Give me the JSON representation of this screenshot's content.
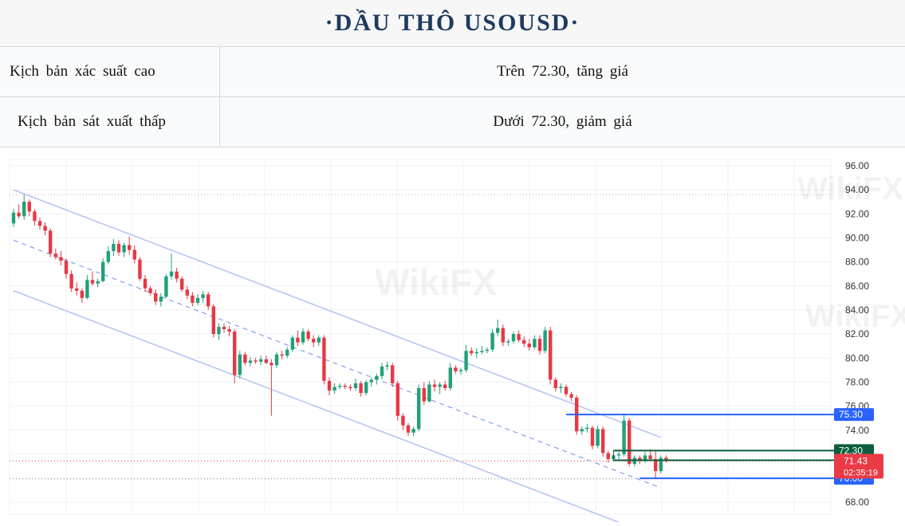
{
  "header": {
    "title": "·DẦU THÔ USOUSD·"
  },
  "scenario_table": {
    "rows": [
      {
        "label": "Kịch bản xác suất cao",
        "value": "Trên 72.30, tăng giá"
      },
      {
        "label": "Kịch bản sát xuất thấp",
        "value": "Dưới 72.30, giảm giá"
      }
    ]
  },
  "watermark": "WikiFX",
  "chart_data": {
    "type": "candlestick",
    "ylim": [
      68,
      96
    ],
    "y_ticks": [
      "96.00",
      "94.00",
      "92.00",
      "90.00",
      "88.00",
      "86.00",
      "84.00",
      "82.00",
      "80.00",
      "78.00",
      "76.00",
      "74.00",
      "72.00",
      "70.00",
      "68.00"
    ],
    "candles": [
      [
        91.2,
        92.4,
        90.9,
        92.1
      ],
      [
        92.1,
        92.8,
        91.6,
        91.8
      ],
      [
        91.8,
        93.6,
        91.5,
        93.0
      ],
      [
        93.0,
        93.2,
        91.8,
        92.2
      ],
      [
        92.2,
        92.4,
        91.0,
        91.4
      ],
      [
        91.4,
        91.7,
        90.7,
        91.0
      ],
      [
        91.0,
        91.3,
        90.2,
        90.6
      ],
      [
        90.6,
        90.8,
        88.4,
        88.7
      ],
      [
        88.7,
        89.1,
        88.2,
        88.4
      ],
      [
        88.4,
        88.9,
        87.7,
        88.1
      ],
      [
        88.1,
        88.3,
        86.6,
        87.0
      ],
      [
        87.0,
        87.3,
        85.5,
        85.8
      ],
      [
        85.8,
        86.3,
        85.2,
        85.6
      ],
      [
        85.6,
        85.8,
        84.6,
        85.0
      ],
      [
        85.0,
        86.9,
        84.9,
        86.5
      ],
      [
        86.5,
        87.2,
        86.0,
        86.2
      ],
      [
        86.2,
        86.6,
        85.9,
        86.4
      ],
      [
        86.4,
        88.3,
        86.3,
        88.0
      ],
      [
        88.0,
        89.3,
        87.8,
        88.9
      ],
      [
        88.9,
        89.9,
        88.5,
        89.5
      ],
      [
        89.5,
        89.8,
        88.5,
        88.8
      ],
      [
        88.8,
        89.6,
        88.4,
        89.4
      ],
      [
        89.4,
        90.1,
        88.6,
        89.0
      ],
      [
        89.0,
        89.4,
        87.9,
        88.2
      ],
      [
        88.2,
        88.4,
        86.4,
        86.6
      ],
      [
        86.6,
        86.9,
        85.5,
        85.8
      ],
      [
        85.8,
        86.0,
        85.2,
        85.4
      ],
      [
        85.4,
        85.7,
        84.4,
        84.7
      ],
      [
        84.7,
        85.4,
        84.3,
        85.1
      ],
      [
        85.1,
        87.0,
        85.0,
        86.8
      ],
      [
        86.8,
        88.7,
        86.5,
        87.2
      ],
      [
        87.2,
        87.5,
        86.3,
        86.6
      ],
      [
        86.6,
        86.8,
        85.5,
        85.7
      ],
      [
        85.7,
        86.0,
        84.9,
        85.2
      ],
      [
        85.2,
        85.5,
        84.3,
        84.6
      ],
      [
        84.6,
        85.3,
        84.4,
        85.0
      ],
      [
        85.0,
        85.6,
        84.6,
        85.3
      ],
      [
        85.3,
        85.5,
        84.0,
        84.3
      ],
      [
        84.3,
        84.5,
        81.7,
        82.0
      ],
      [
        82.0,
        82.9,
        81.5,
        82.6
      ],
      [
        82.6,
        82.9,
        82.1,
        82.4
      ],
      [
        82.4,
        82.7,
        81.8,
        82.2
      ],
      [
        82.2,
        82.4,
        77.9,
        78.6
      ],
      [
        78.6,
        80.6,
        78.3,
        80.3
      ],
      [
        80.3,
        80.5,
        79.4,
        79.6
      ],
      [
        79.6,
        80.1,
        79.3,
        79.8
      ],
      [
        79.8,
        80.0,
        79.5,
        79.7
      ],
      [
        79.7,
        80.2,
        79.4,
        79.9
      ],
      [
        79.9,
        80.2,
        79.5,
        79.6
      ],
      [
        79.6,
        79.9,
        75.2,
        79.4
      ],
      [
        79.4,
        80.5,
        79.2,
        80.3
      ],
      [
        80.3,
        80.6,
        79.9,
        80.2
      ],
      [
        80.2,
        80.9,
        80.0,
        80.7
      ],
      [
        80.7,
        81.9,
        80.5,
        81.7
      ],
      [
        81.7,
        82.3,
        81.0,
        81.3
      ],
      [
        81.3,
        82.5,
        81.1,
        82.2
      ],
      [
        82.2,
        82.4,
        81.4,
        81.6
      ],
      [
        81.6,
        81.9,
        80.9,
        81.3
      ],
      [
        81.3,
        81.9,
        81.0,
        81.7
      ],
      [
        81.7,
        81.9,
        77.8,
        78.1
      ],
      [
        78.1,
        78.4,
        76.9,
        77.3
      ],
      [
        77.3,
        77.9,
        77.0,
        77.6
      ],
      [
        77.6,
        77.9,
        77.4,
        77.7
      ],
      [
        77.7,
        77.9,
        77.4,
        77.6
      ],
      [
        77.6,
        77.8,
        77.3,
        77.5
      ],
      [
        77.5,
        78.3,
        77.3,
        77.9
      ],
      [
        77.9,
        78.1,
        76.8,
        77.1
      ],
      [
        77.1,
        78.2,
        76.9,
        78.0
      ],
      [
        78.0,
        78.4,
        77.6,
        78.2
      ],
      [
        78.2,
        78.7,
        77.8,
        78.5
      ],
      [
        78.5,
        79.6,
        78.2,
        79.3
      ],
      [
        79.3,
        79.7,
        79.0,
        79.4
      ],
      [
        79.4,
        79.6,
        77.6,
        77.9
      ],
      [
        77.9,
        78.1,
        74.8,
        75.2
      ],
      [
        75.2,
        75.4,
        74.0,
        74.4
      ],
      [
        74.4,
        74.6,
        73.5,
        73.8
      ],
      [
        73.8,
        74.3,
        73.5,
        74.1
      ],
      [
        74.1,
        77.8,
        73.9,
        77.5
      ],
      [
        77.5,
        78.0,
        76.1,
        76.4
      ],
      [
        76.4,
        78.1,
        76.3,
        77.8
      ],
      [
        77.8,
        78.2,
        77.2,
        77.6
      ],
      [
        77.6,
        78.0,
        77.0,
        77.8
      ],
      [
        77.8,
        78.1,
        77.3,
        77.5
      ],
      [
        77.5,
        79.6,
        77.3,
        79.2
      ],
      [
        79.2,
        79.4,
        78.7,
        78.9
      ],
      [
        78.9,
        79.2,
        78.6,
        79.0
      ],
      [
        79.0,
        81.1,
        78.8,
        80.6
      ],
      [
        80.6,
        80.9,
        80.2,
        80.4
      ],
      [
        80.4,
        80.8,
        80.0,
        80.5
      ],
      [
        80.5,
        81.0,
        80.3,
        80.6
      ],
      [
        80.6,
        80.9,
        80.4,
        80.7
      ],
      [
        80.7,
        82.4,
        80.5,
        82.1
      ],
      [
        82.1,
        83.2,
        81.8,
        82.5
      ],
      [
        82.5,
        82.8,
        81.0,
        81.3
      ],
      [
        81.3,
        81.6,
        81.0,
        81.4
      ],
      [
        81.4,
        82.2,
        81.2,
        82.0
      ],
      [
        82.0,
        82.3,
        81.3,
        81.5
      ],
      [
        81.5,
        81.8,
        80.9,
        81.2
      ],
      [
        81.2,
        81.6,
        80.6,
        80.9
      ],
      [
        80.9,
        81.9,
        80.7,
        81.6
      ],
      [
        81.6,
        81.9,
        80.3,
        80.6
      ],
      [
        80.6,
        82.6,
        80.4,
        82.3
      ],
      [
        82.3,
        82.6,
        77.8,
        78.2
      ],
      [
        78.2,
        78.4,
        77.2,
        77.5
      ],
      [
        77.5,
        77.9,
        77.1,
        77.6
      ],
      [
        77.6,
        77.8,
        76.8,
        77.0
      ],
      [
        77.0,
        77.2,
        76.4,
        76.7
      ],
      [
        76.7,
        76.9,
        73.6,
        73.9
      ],
      [
        73.9,
        74.3,
        73.6,
        74.1
      ],
      [
        74.1,
        74.5,
        73.8,
        74.2
      ],
      [
        74.2,
        74.4,
        72.4,
        72.7
      ],
      [
        72.7,
        74.4,
        72.5,
        74.1
      ],
      [
        74.1,
        74.3,
        71.8,
        72.1
      ],
      [
        72.1,
        72.3,
        71.3,
        71.6
      ],
      [
        71.6,
        72.1,
        71.4,
        71.9
      ],
      [
        71.9,
        72.2,
        71.6,
        72.0
      ],
      [
        72.0,
        75.3,
        71.8,
        74.8
      ],
      [
        74.8,
        75.0,
        71.0,
        71.2
      ],
      [
        71.2,
        71.9,
        71.0,
        71.7
      ],
      [
        71.7,
        71.9,
        71.2,
        71.5
      ],
      [
        71.5,
        72.2,
        71.3,
        71.9
      ],
      [
        71.9,
        72.4,
        71.5,
        71.6
      ],
      [
        71.6,
        72.3,
        70.0,
        70.6
      ],
      [
        70.6,
        71.9,
        70.4,
        71.7
      ],
      [
        71.7,
        71.9,
        71.3,
        71.43
      ]
    ],
    "levels": [
      {
        "price": 75.3,
        "label": "75.30",
        "color": "#2962ff"
      },
      {
        "price": 72.3,
        "label": "72.30",
        "color": "#0b5e3b"
      },
      {
        "price": 71.5,
        "label": "71.50",
        "color": "#0b5e3b"
      },
      {
        "price": 70.0,
        "label": "70.00",
        "color": "#2962ff"
      }
    ],
    "current_price": {
      "label": "71.43",
      "countdown": "02:35:19",
      "color": "#e93a45"
    },
    "channel": {
      "upper": [
        [
          0,
          94.0
        ],
        [
          123,
          73.4
        ]
      ],
      "middle": [
        [
          0,
          89.8
        ],
        [
          123,
          69.2
        ]
      ],
      "lower": [
        [
          0,
          85.6
        ],
        [
          123,
          65.0
        ]
      ]
    },
    "colors": {
      "up": "#22a07a",
      "down": "#e53945"
    }
  }
}
